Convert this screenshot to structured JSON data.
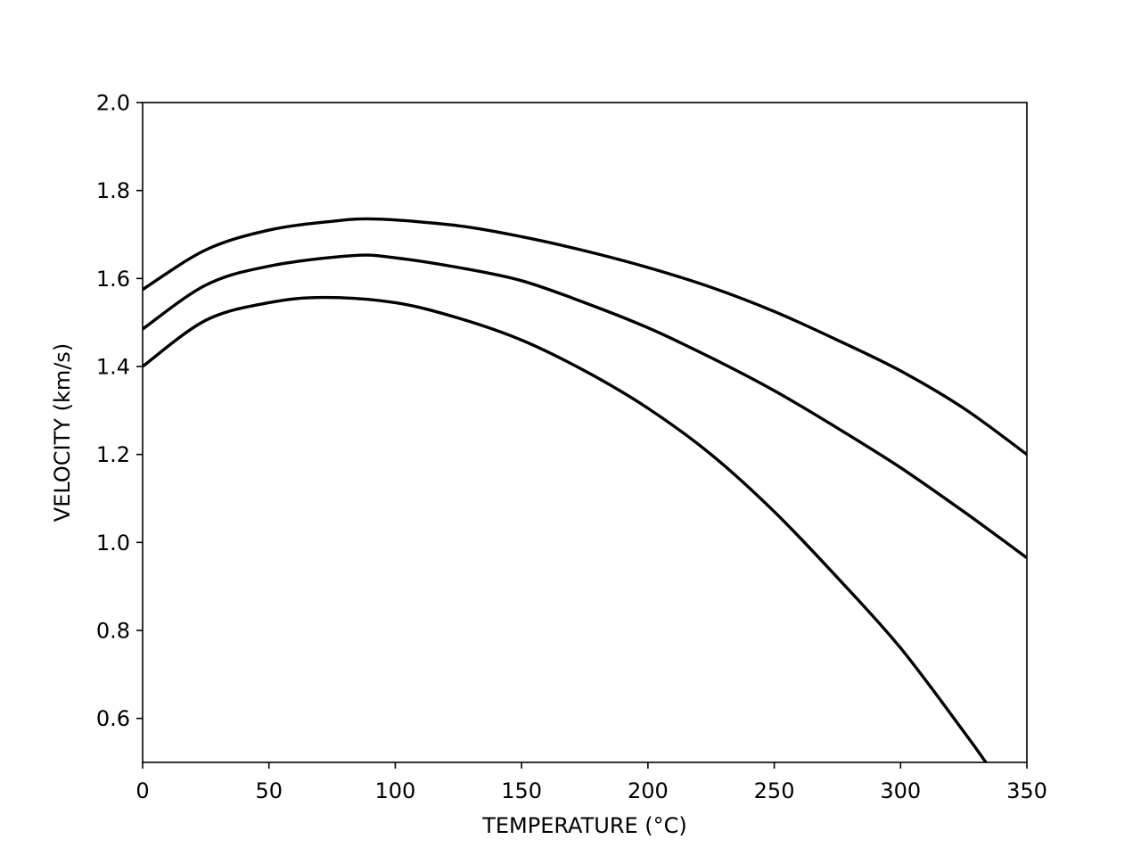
{
  "chart_data": {
    "type": "line",
    "title": "",
    "xlabel": "TEMPERATURE (°C)",
    "ylabel": "VELOCITY (km/s)",
    "xlim": [
      0,
      350
    ],
    "ylim": [
      0.5,
      2.0
    ],
    "xticks": [
      0,
      50,
      100,
      150,
      200,
      250,
      300,
      350
    ],
    "yticks": [
      0.6,
      0.8,
      1.0,
      1.2,
      1.4,
      1.6,
      1.8,
      2.0
    ],
    "xtick_labels": [
      "0",
      "50",
      "100",
      "150",
      "200",
      "250",
      "300",
      "350"
    ],
    "ytick_labels": [
      "0.6",
      "0.8",
      "1.0",
      "1.2",
      "1.4",
      "1.6",
      "1.8",
      "2.0"
    ],
    "grid": false,
    "line_color": "#000000",
    "series": [
      {
        "x": [
          0,
          25,
          50,
          75,
          93,
          125,
          150,
          175,
          200,
          225,
          250,
          275,
          300,
          325,
          350
        ],
        "values": [
          1.575,
          1.665,
          1.71,
          1.73,
          1.735,
          1.72,
          1.695,
          1.663,
          1.625,
          1.58,
          1.525,
          1.46,
          1.39,
          1.305,
          1.2
        ]
      },
      {
        "x": [
          0,
          25,
          50,
          83,
          100,
          125,
          150,
          175,
          200,
          225,
          250,
          275,
          300,
          325,
          350
        ],
        "values": [
          1.485,
          1.585,
          1.628,
          1.652,
          1.647,
          1.625,
          1.595,
          1.545,
          1.488,
          1.42,
          1.345,
          1.26,
          1.17,
          1.07,
          0.965
        ]
      },
      {
        "x": [
          0,
          25,
          50,
          72,
          100,
          125,
          150,
          175,
          200,
          225,
          250,
          275,
          300,
          325,
          335
        ],
        "values": [
          1.4,
          1.505,
          1.545,
          1.557,
          1.545,
          1.51,
          1.46,
          1.39,
          1.305,
          1.2,
          1.07,
          0.92,
          0.76,
          0.57,
          0.49
        ]
      }
    ]
  }
}
